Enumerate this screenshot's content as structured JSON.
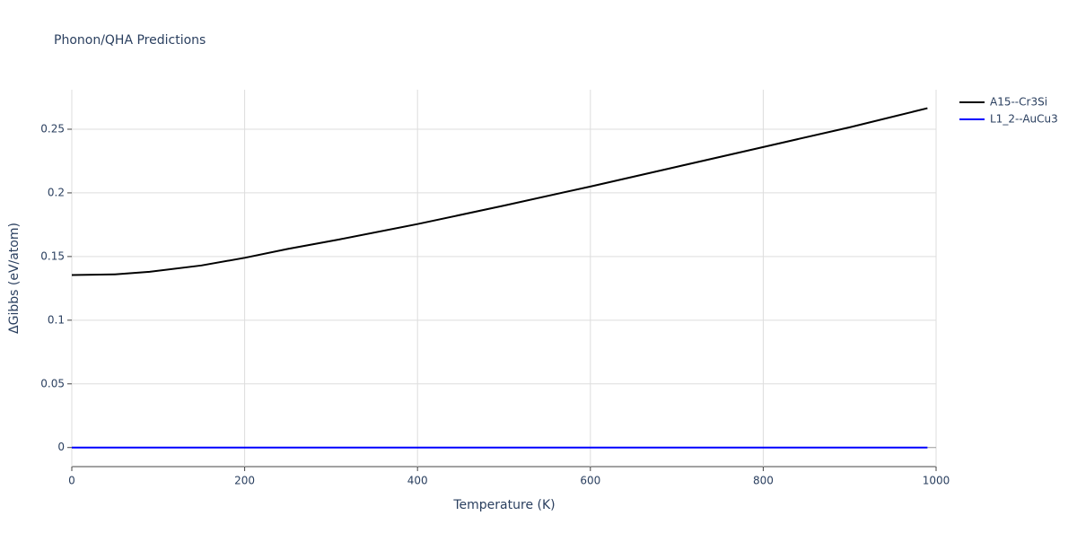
{
  "chart_data": {
    "type": "line",
    "title": "Phonon/QHA Predictions",
    "x_label": "Temperature (K)",
    "y_label": "ΔGibbs (eV/atom)",
    "xlim": [
      0,
      1000
    ],
    "xticks": [
      0,
      200,
      400,
      600,
      800,
      1000
    ],
    "ylim": [
      -0.015,
      0.281
    ],
    "yticks": [
      0,
      0.05,
      0.1,
      0.15,
      0.2,
      0.25
    ],
    "grid": true,
    "legend": "right",
    "series": [
      {
        "name": "A15--Cr3Si",
        "color": "#000000",
        "x": [
          0,
          50,
          90,
          150,
          200,
          250,
          310,
          400,
          500,
          600,
          700,
          800,
          900,
          990
        ],
        "values": [
          0.1355,
          0.136,
          0.138,
          0.143,
          0.149,
          0.156,
          0.1635,
          0.1755,
          0.19,
          0.205,
          0.2205,
          0.236,
          0.2515,
          0.2665
        ]
      },
      {
        "name": "L1_2--AuCu3",
        "color": "#0000ff",
        "x": [
          0,
          200,
          400,
          600,
          800,
          990
        ],
        "values": [
          0,
          0,
          0,
          0,
          0,
          0
        ]
      }
    ]
  }
}
